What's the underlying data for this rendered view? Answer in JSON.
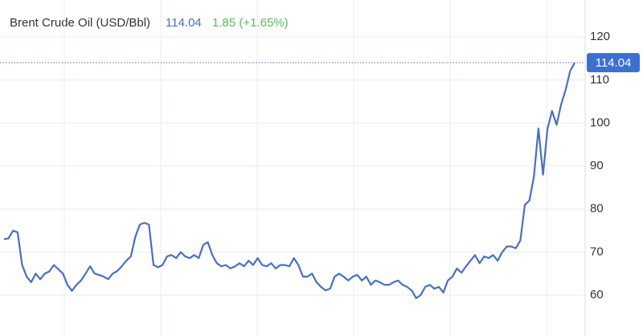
{
  "chart_data": {
    "type": "line",
    "title": "Brent Crude Oil (USD/Bbl)",
    "price": 114.04,
    "change": "1.85 (+1.65%)",
    "color": "#4a6fbf",
    "values": [
      73,
      73.2,
      75,
      74.6,
      67,
      64.3,
      63,
      65,
      63.7,
      65,
      65.5,
      67,
      66,
      65,
      62.4,
      61,
      62.4,
      63.4,
      65,
      66.7,
      65,
      64.7,
      64.3,
      63.7,
      65,
      65.6,
      66.7,
      68,
      69,
      73.6,
      76.4,
      76.8,
      76.4,
      67,
      66.5,
      67,
      69,
      69.3,
      68.6,
      70,
      69,
      68.6,
      69.3,
      68.6,
      71.7,
      72.3,
      69.3,
      67.4,
      66.7,
      67,
      66.2,
      66.7,
      67.4,
      66.7,
      68,
      67,
      68.6,
      67,
      66.7,
      67.4,
      66.2,
      67,
      67,
      66.7,
      68.6,
      67,
      64.3,
      64.3,
      65,
      63,
      61.9,
      61.1,
      61.5,
      64.3,
      65,
      64.3,
      63.4,
      64.3,
      64.7,
      63.4,
      64.3,
      62.4,
      63.4,
      63,
      62.4,
      62.4,
      63,
      63.4,
      62.4,
      61.9,
      61.1,
      59.3,
      60,
      61.9,
      62.4,
      61.5,
      61.9,
      60.6,
      63.4,
      64.3,
      66.2,
      65.2,
      66.7,
      68,
      69.3,
      67.4,
      69,
      68.6,
      69.3,
      68,
      70,
      71.3,
      71.3,
      70.9,
      72.7,
      81,
      82,
      87.6,
      98.7,
      88,
      98.7,
      102.8,
      99.6,
      104.3,
      107.7,
      112.1,
      114.04
    ],
    "ylim": [
      50.5,
      128.6
    ],
    "yticks": [
      60,
      70,
      80,
      90,
      100,
      110,
      120
    ],
    "grid": true
  }
}
